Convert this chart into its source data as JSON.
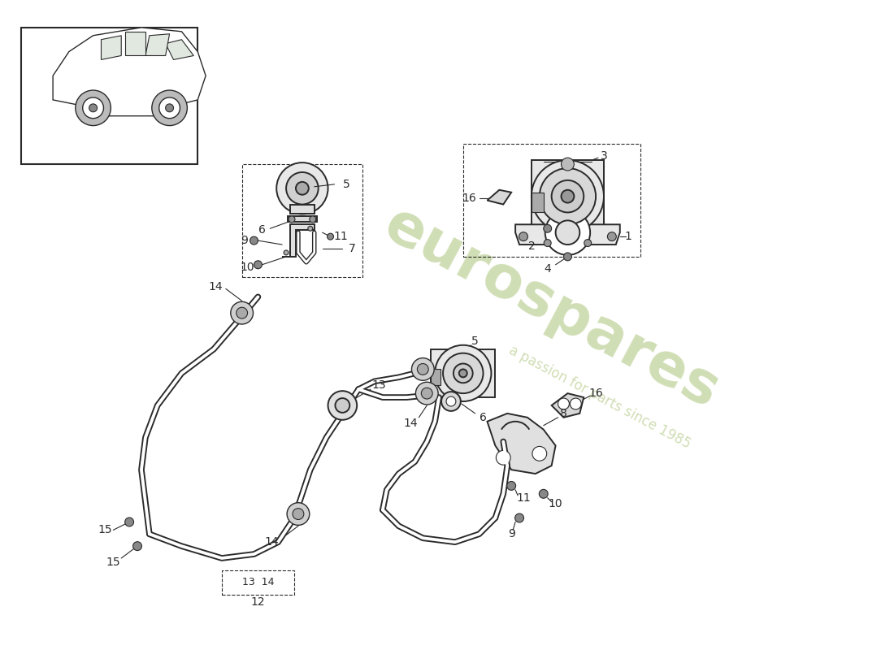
{
  "bg_color": "#ffffff",
  "watermark1": "eurospares",
  "watermark2": "a passion for parts since 1985",
  "wm_color": "#c8d8a8",
  "lc": "#2a2a2a",
  "lw": 1.4,
  "fs": 10,
  "figsize": [
    11.0,
    8.0
  ],
  "dpi": 100
}
